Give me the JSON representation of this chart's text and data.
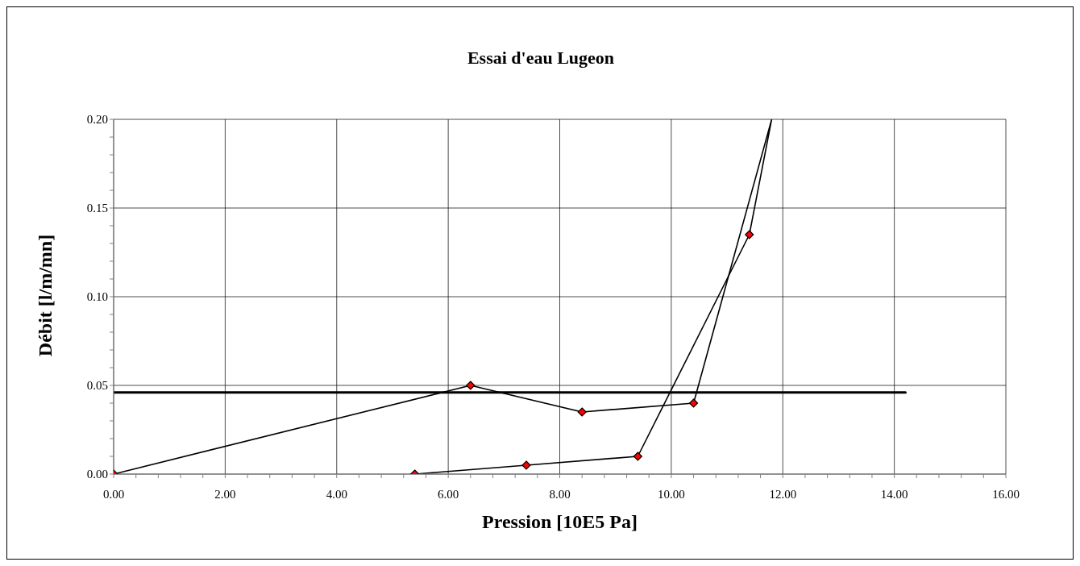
{
  "chart_data": {
    "type": "line",
    "title": "Essai d'eau Lugeon",
    "xlabel": "Pression [10E5 Pa]",
    "ylabel": "Débit [l/m/mn]",
    "xlim": [
      0,
      16
    ],
    "ylim": [
      0,
      0.2
    ],
    "xticks": [
      {
        "value": 0,
        "label": "0.00"
      },
      {
        "value": 0.4,
        "label": null
      },
      {
        "value": 0.8,
        "label": null
      },
      {
        "value": 1.2,
        "label": null
      },
      {
        "value": 1.6,
        "label": null
      },
      {
        "value": 2,
        "label": "2.00"
      },
      {
        "value": 2.4,
        "label": null
      },
      {
        "value": 2.8,
        "label": null
      },
      {
        "value": 3.2,
        "label": null
      },
      {
        "value": 3.6,
        "label": null
      },
      {
        "value": 4,
        "label": "4.00"
      },
      {
        "value": 4.4,
        "label": null
      },
      {
        "value": 4.8,
        "label": null
      },
      {
        "value": 5.2,
        "label": null
      },
      {
        "value": 5.6,
        "label": null
      },
      {
        "value": 6,
        "label": "6.00"
      },
      {
        "value": 6.4,
        "label": null
      },
      {
        "value": 6.8,
        "label": null
      },
      {
        "value": 7.2,
        "label": null
      },
      {
        "value": 7.6,
        "label": null
      },
      {
        "value": 8,
        "label": "8.00"
      },
      {
        "value": 8.4,
        "label": null
      },
      {
        "value": 8.8,
        "label": null
      },
      {
        "value": 9.2,
        "label": null
      },
      {
        "value": 9.6,
        "label": null
      },
      {
        "value": 10,
        "label": "10.00"
      },
      {
        "value": 10.4,
        "label": null
      },
      {
        "value": 10.8,
        "label": null
      },
      {
        "value": 11.2,
        "label": null
      },
      {
        "value": 11.6,
        "label": null
      },
      {
        "value": 12,
        "label": "12.00"
      },
      {
        "value": 12.4,
        "label": null
      },
      {
        "value": 12.8,
        "label": null
      },
      {
        "value": 13.2,
        "label": null
      },
      {
        "value": 13.6,
        "label": null
      },
      {
        "value": 14,
        "label": "14.00"
      },
      {
        "value": 14.4,
        "label": null
      },
      {
        "value": 14.8,
        "label": null
      },
      {
        "value": 15.2,
        "label": null
      },
      {
        "value": 15.6,
        "label": null
      },
      {
        "value": 16,
        "label": "16.00"
      }
    ],
    "yticks": [
      {
        "value": 0,
        "label": "0.00"
      },
      {
        "value": 0.01,
        "label": null
      },
      {
        "value": 0.02,
        "label": null
      },
      {
        "value": 0.03,
        "label": null
      },
      {
        "value": 0.04,
        "label": null
      },
      {
        "value": 0.05,
        "label": "0.05"
      },
      {
        "value": 0.06,
        "label": null
      },
      {
        "value": 0.07,
        "label": null
      },
      {
        "value": 0.08,
        "label": null
      },
      {
        "value": 0.09,
        "label": null
      },
      {
        "value": 0.1,
        "label": "0.10"
      },
      {
        "value": 0.11,
        "label": null
      },
      {
        "value": 0.12,
        "label": null
      },
      {
        "value": 0.13,
        "label": null
      },
      {
        "value": 0.14,
        "label": null
      },
      {
        "value": 0.15,
        "label": "0.15"
      },
      {
        "value": 0.16,
        "label": null
      },
      {
        "value": 0.17,
        "label": null
      },
      {
        "value": 0.18,
        "label": null
      },
      {
        "value": 0.19,
        "label": null
      },
      {
        "value": 0.2,
        "label": "0.20"
      }
    ],
    "grid": true,
    "legend": false,
    "marker": "diamond",
    "line_style": "solid",
    "series": [
      {
        "color": "#000000",
        "x": [
          5.4,
          7.4,
          9.4,
          11.4
        ],
        "values": [
          0,
          0.005,
          0.01,
          0.135
        ]
      },
      {
        "color": "#000000",
        "x": [
          11.4,
          11.8,
          10.4
        ],
        "values": [
          0.135,
          0.2,
          0.04
        ],
        "marker": "none"
      },
      {
        "color": "#000000",
        "x": [
          10.4,
          8.4,
          6.4,
          0
        ],
        "values": [
          0.04,
          0.035,
          0.05,
          0
        ]
      },
      {
        "color": "#000000",
        "x": [
          0,
          14.2
        ],
        "values": [
          0.046,
          0.046
        ],
        "marker": "none"
      }
    ]
  }
}
